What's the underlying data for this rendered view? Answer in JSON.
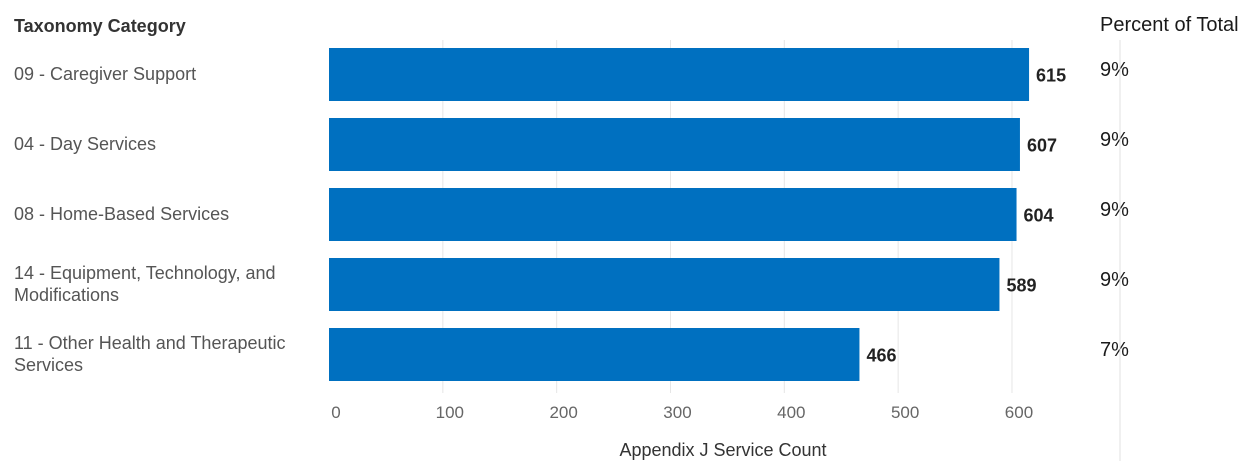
{
  "chart_data": {
    "type": "bar",
    "orientation": "horizontal",
    "category_axis_title": "Taxonomy Category",
    "categories": [
      "09 - Caregiver Support",
      "04 - Day Services",
      "08 - Home-Based Services",
      "14 - Equipment, Technology, and Modifications",
      "11 - Other Health and Therapeutic Services"
    ],
    "category_label_lines": [
      [
        "09 - Caregiver Support"
      ],
      [
        "04 - Day Services"
      ],
      [
        "08 - Home-Based Services"
      ],
      [
        "14 - Equipment, Technology, and",
        "Modifications"
      ],
      [
        "11 - Other Health and Therapeutic",
        "Services"
      ]
    ],
    "values": [
      615,
      607,
      604,
      589,
      466
    ],
    "value_labels": [
      "615",
      "607",
      "604",
      "589",
      "466"
    ],
    "percent_column_title": "Percent of Total",
    "percent_labels": [
      "9%",
      "9%",
      "9%",
      "9%",
      "7%"
    ],
    "xlabel": "Appendix J Service Count",
    "xticks": [
      0,
      100,
      200,
      300,
      400,
      500,
      600
    ],
    "xlim": [
      0,
      650
    ],
    "grid": "vertical",
    "bar_color": "#0070c0"
  }
}
